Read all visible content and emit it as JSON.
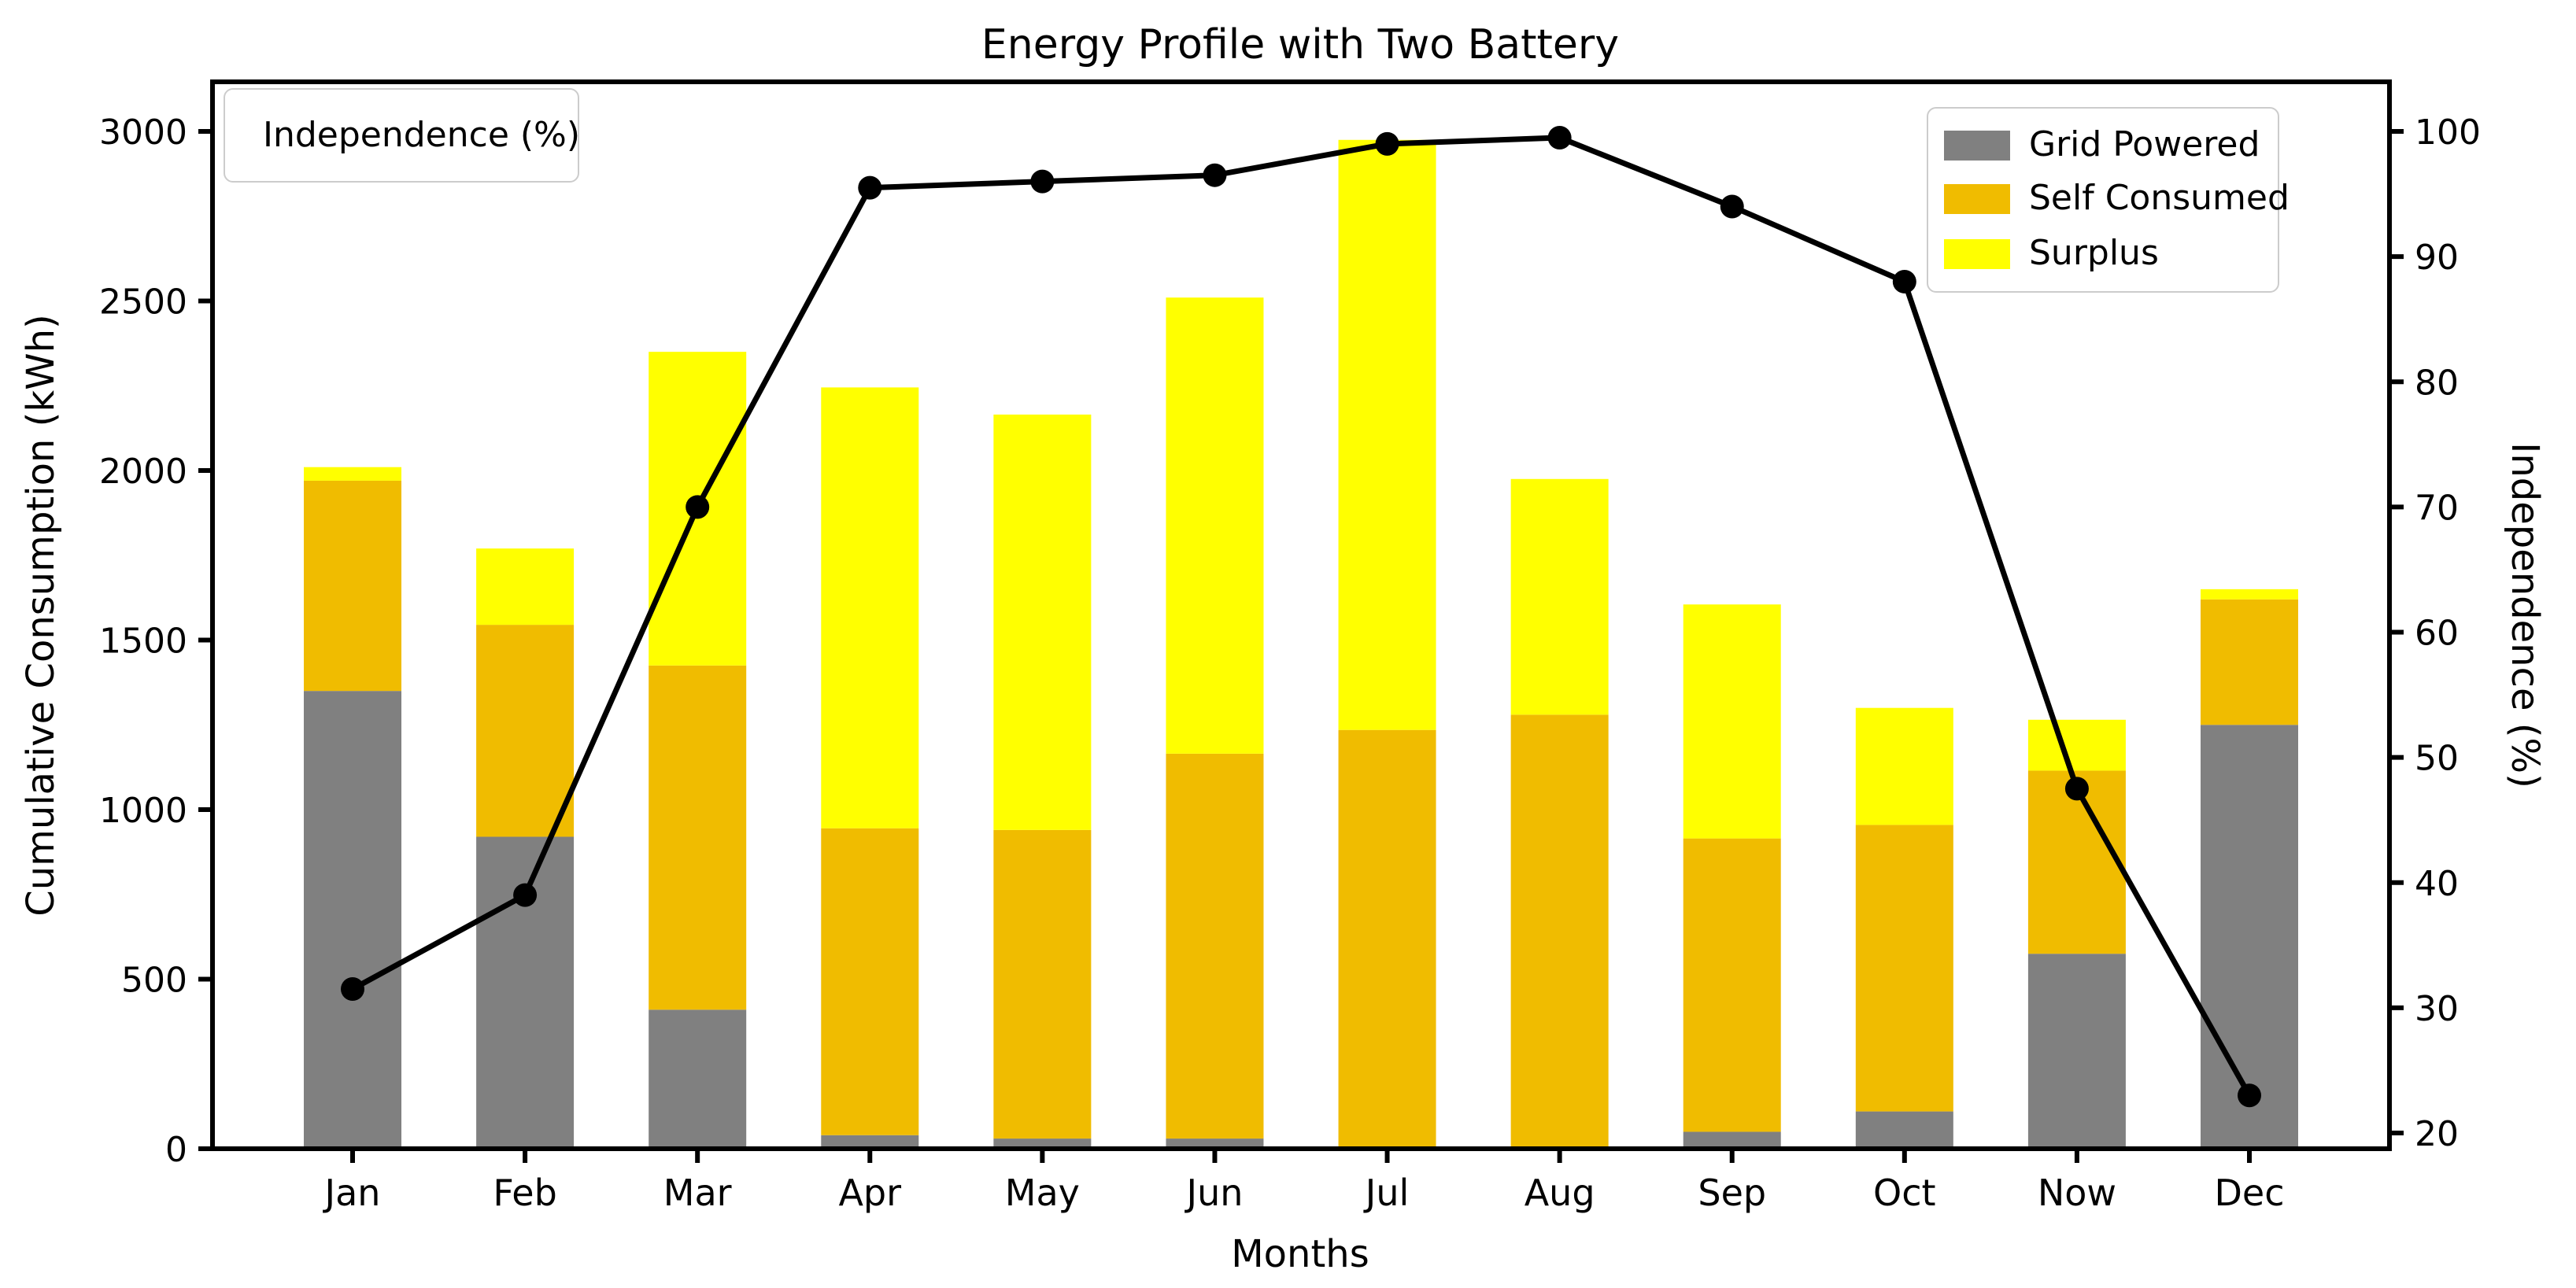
{
  "figure": {
    "title": "Energy Profile with Two Battery",
    "xlabel": "Months",
    "ylabel_left": "Cumulative Consumption (kWh)",
    "ylabel_right": "Independence (%)",
    "background_color": "#ffffff",
    "spine_color": "#000000"
  },
  "legend_line": {
    "label": "Independence (%)"
  },
  "legend_bars": {
    "items": [
      {
        "label": "Grid Powered",
        "color": "#808080"
      },
      {
        "label": "Self Consumed",
        "color": "#F0BC00"
      },
      {
        "label": "Surplus",
        "color": "#FFFF00"
      }
    ]
  },
  "chart_data": {
    "type": "bar",
    "subtype": "stacked-bars-with-line",
    "title": "Energy Profile with Two Battery",
    "xlabel": "Months",
    "ylabel": "Cumulative Consumption (kWh)",
    "ylabel_right": "Independence (%)",
    "categories": [
      "Jan",
      "Feb",
      "Mar",
      "Apr",
      "May",
      "Jun",
      "Jul",
      "Aug",
      "Sep",
      "Oct",
      "Now",
      "Dec"
    ],
    "series": [
      {
        "name": "Grid Powered",
        "color": "#808080",
        "values": [
          1350,
          920,
          410,
          40,
          30,
          30,
          0,
          0,
          50,
          110,
          575,
          1250
        ]
      },
      {
        "name": "Self Consumed",
        "color": "#F0BC00",
        "values": [
          620,
          625,
          1015,
          905,
          910,
          1135,
          1235,
          1280,
          865,
          845,
          540,
          370
        ]
      },
      {
        "name": "Surplus",
        "color": "#FFFF00",
        "values": [
          40,
          225,
          925,
          1300,
          1225,
          1345,
          1740,
          695,
          690,
          345,
          150,
          30
        ]
      }
    ],
    "line": {
      "name": "Independence (%)",
      "color": "#000000",
      "marker": "circle",
      "values": [
        31.5,
        39,
        70,
        95.5,
        96,
        96.5,
        99,
        99.5,
        94,
        88,
        47.5,
        23
      ]
    },
    "ylim_left": [
      0,
      3000
    ],
    "yticks_left": [
      0,
      500,
      1000,
      1500,
      2000,
      2500,
      3000
    ],
    "ylim_right": [
      20,
      100
    ],
    "yticks_right": [
      20,
      30,
      40,
      50,
      60,
      70,
      80,
      90,
      100
    ],
    "grid": "off",
    "legend_line_position": "upper left",
    "legend_bars_position": "upper right"
  }
}
